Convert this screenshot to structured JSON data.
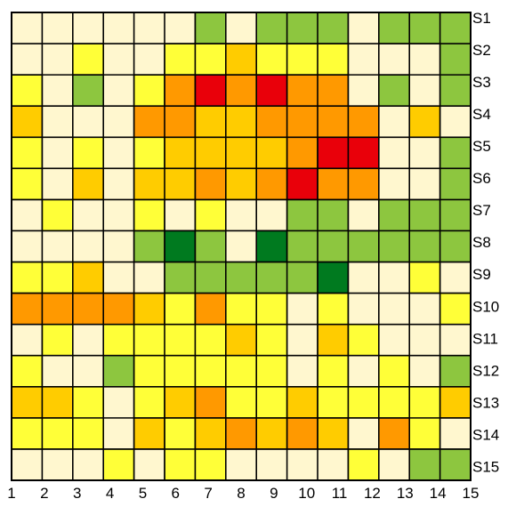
{
  "chart_data": {
    "type": "heatmap",
    "title": "",
    "xlabel": "",
    "ylabel": "",
    "x": [
      "1",
      "2",
      "3",
      "4",
      "5",
      "6",
      "7",
      "8",
      "9",
      "10",
      "11",
      "12",
      "13",
      "14",
      "15"
    ],
    "y": [
      "S1",
      "S2",
      "S3",
      "S4",
      "S5",
      "S6",
      "S7",
      "S8",
      "S9",
      "S10",
      "S11",
      "S12",
      "S13",
      "S14",
      "S15"
    ],
    "grid": true,
    "legend": "none",
    "levels": [
      0,
      1,
      2,
      3,
      4,
      5,
      6
    ],
    "colors": {
      "0": "#007a1f",
      "1": "#8dc63f",
      "2": "#fff7cf",
      "3": "#ffff38",
      "4": "#ffcc00",
      "5": "#ff9900",
      "6": "#e9000a"
    },
    "values": [
      [
        2,
        2,
        2,
        2,
        2,
        2,
        1,
        2,
        1,
        1,
        1,
        2,
        1,
        1,
        1
      ],
      [
        2,
        2,
        3,
        2,
        2,
        3,
        3,
        4,
        3,
        3,
        3,
        2,
        2,
        2,
        1
      ],
      [
        3,
        2,
        1,
        2,
        3,
        5,
        6,
        5,
        6,
        5,
        5,
        2,
        1,
        2,
        1
      ],
      [
        4,
        2,
        2,
        2,
        5,
        5,
        4,
        4,
        5,
        5,
        5,
        5,
        2,
        4,
        2
      ],
      [
        3,
        2,
        3,
        2,
        3,
        4,
        4,
        4,
        4,
        5,
        6,
        6,
        2,
        2,
        1
      ],
      [
        3,
        2,
        4,
        2,
        4,
        4,
        5,
        4,
        5,
        6,
        5,
        5,
        2,
        2,
        1
      ],
      [
        2,
        3,
        2,
        2,
        3,
        2,
        3,
        2,
        2,
        1,
        1,
        2,
        1,
        1,
        1
      ],
      [
        2,
        2,
        2,
        2,
        1,
        0,
        1,
        2,
        0,
        1,
        1,
        1,
        1,
        1,
        1
      ],
      [
        3,
        3,
        4,
        2,
        2,
        1,
        1,
        1,
        1,
        1,
        0,
        2,
        2,
        3,
        2
      ],
      [
        5,
        5,
        5,
        5,
        4,
        3,
        5,
        3,
        3,
        2,
        3,
        2,
        2,
        2,
        3
      ],
      [
        2,
        3,
        2,
        3,
        3,
        3,
        3,
        4,
        3,
        2,
        4,
        3,
        2,
        2,
        2
      ],
      [
        3,
        2,
        2,
        1,
        3,
        3,
        3,
        3,
        3,
        2,
        3,
        2,
        3,
        2,
        1
      ],
      [
        4,
        4,
        3,
        2,
        3,
        4,
        5,
        3,
        3,
        4,
        3,
        3,
        3,
        3,
        4
      ],
      [
        3,
        3,
        3,
        2,
        4,
        3,
        4,
        5,
        4,
        5,
        4,
        2,
        5,
        3,
        2
      ],
      [
        2,
        2,
        2,
        3,
        2,
        3,
        3,
        2,
        2,
        2,
        2,
        3,
        2,
        1,
        1
      ]
    ]
  }
}
